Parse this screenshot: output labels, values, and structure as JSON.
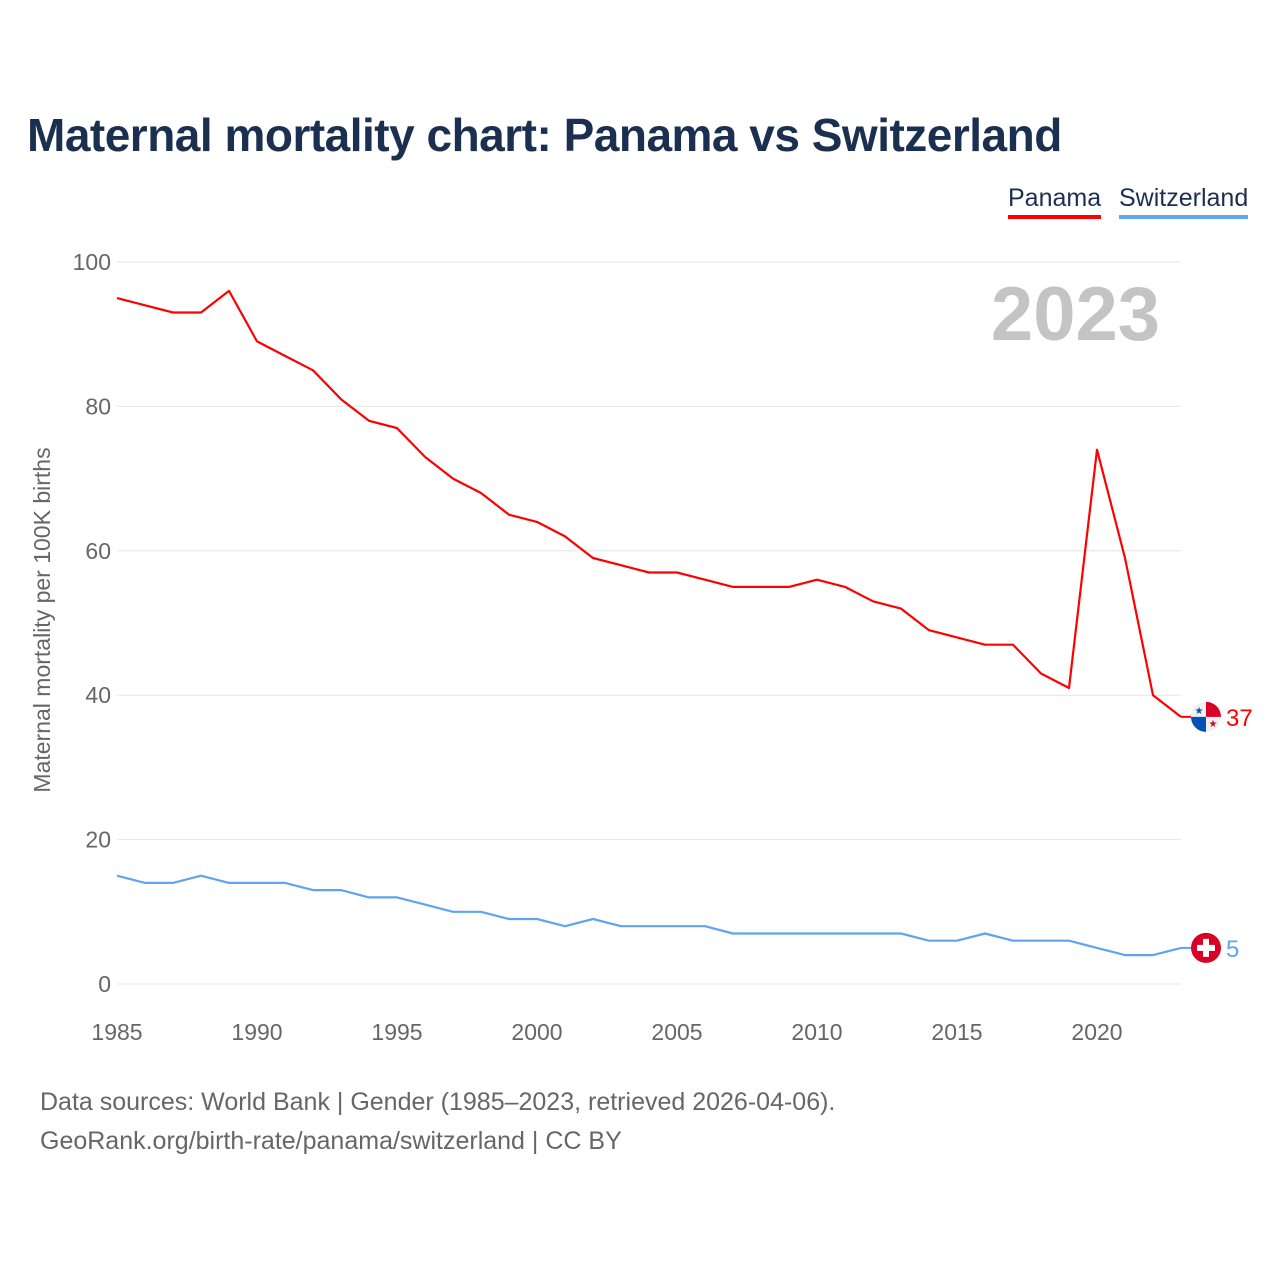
{
  "title": "Maternal mortality chart: Panama vs Switzerland",
  "chart_data": {
    "type": "line",
    "title": "Maternal mortality chart: Panama vs Switzerland",
    "xlabel": "",
    "ylabel": "Maternal mortality per 100K births",
    "xlim": [
      1985,
      2023
    ],
    "ylim": [
      0,
      100
    ],
    "yticks": [
      0,
      20,
      40,
      60,
      80,
      100
    ],
    "xticks": [
      1985,
      1990,
      1995,
      2000,
      2005,
      2010,
      2015,
      2020
    ],
    "grid": true,
    "legend_position": "top-right",
    "year_watermark": "2023",
    "x": [
      1985,
      1986,
      1987,
      1988,
      1989,
      1990,
      1991,
      1992,
      1993,
      1994,
      1995,
      1996,
      1997,
      1998,
      1999,
      2000,
      2001,
      2002,
      2003,
      2004,
      2005,
      2006,
      2007,
      2008,
      2009,
      2010,
      2011,
      2012,
      2013,
      2014,
      2015,
      2016,
      2017,
      2018,
      2019,
      2020,
      2021,
      2022,
      2023
    ],
    "series": [
      {
        "name": "Panama",
        "color": "#ff0000",
        "end_label": "37",
        "values": [
          95,
          94,
          93,
          93,
          96,
          89,
          87,
          85,
          81,
          78,
          77,
          73,
          70,
          68,
          65,
          64,
          62,
          59,
          58,
          57,
          57,
          56,
          55,
          55,
          55,
          56,
          55,
          53,
          52,
          49,
          48,
          47,
          47,
          43,
          41,
          74,
          59,
          40,
          37
        ]
      },
      {
        "name": "Switzerland",
        "color": "#5ea4ee",
        "end_label": "5",
        "values": [
          15,
          14,
          14,
          15,
          14,
          14,
          14,
          13,
          13,
          12,
          12,
          11,
          10,
          10,
          9,
          9,
          8,
          9,
          8,
          8,
          8,
          8,
          7,
          7,
          7,
          7,
          7,
          7,
          7,
          6,
          6,
          7,
          6,
          6,
          6,
          5,
          4,
          4,
          5
        ]
      }
    ]
  },
  "footer": {
    "line1": "Data sources: World Bank | Gender (1985–2023, retrieved 2026-04-06).",
    "line2": "GeoRank.org/birth-rate/panama/switzerland | CC BY"
  }
}
